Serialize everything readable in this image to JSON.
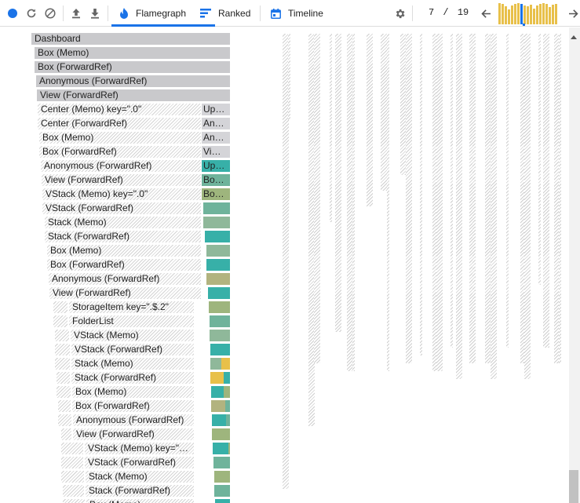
{
  "toolbar": {
    "tabs": [
      {
        "label": "Flamegraph",
        "active": true
      },
      {
        "label": "Ranked",
        "active": false
      },
      {
        "label": "Timeline",
        "active": false
      }
    ],
    "commit_index": "7",
    "commit_sep": "/",
    "commit_total": "19",
    "accent_color": "#1a73e8",
    "commit_bar_color": "#e8c04a",
    "commit_heights": [
      1.0,
      0.95,
      0.85,
      0.72,
      0.88,
      0.95,
      1.0,
      0.97,
      0.9,
      0.85,
      0.92,
      0.75,
      0.9,
      0.95,
      1.0,
      0.97,
      0.82,
      0.93,
      0.95
    ],
    "selected_commit": 7
  },
  "flame": {
    "left_tree": [
      {
        "label": "Dashboard",
        "style": "gray"
      },
      {
        "label": "Box (Memo)",
        "style": "gray"
      },
      {
        "label": "Box (ForwardRef)",
        "style": "gray"
      },
      {
        "label": "Anonymous (ForwardRef)",
        "style": "gray"
      },
      {
        "label": "View (ForwardRef)",
        "style": "gray"
      },
      {
        "label": "Center (Memo) key=\".0\"",
        "style": "hatch"
      },
      {
        "label": "Center (ForwardRef)",
        "style": "hatch"
      },
      {
        "label": "Box (Memo)",
        "style": "hatch"
      },
      {
        "label": "Box (ForwardRef)",
        "style": "hatch"
      },
      {
        "label": "Anonymous (ForwardRef)",
        "style": "hatch"
      },
      {
        "label": "View (ForwardRef)",
        "style": "hatch"
      },
      {
        "label": "VStack (Memo) key=\".0\"",
        "style": "hatch"
      },
      {
        "label": "VStack (ForwardRef)",
        "style": "hatch"
      },
      {
        "label": "Stack (Memo)",
        "style": "hatch"
      },
      {
        "label": "Stack (ForwardRef)",
        "style": "hatch"
      },
      {
        "label": "Box (Memo)",
        "style": "hatch"
      },
      {
        "label": "Box (ForwardRef)",
        "style": "hatch"
      },
      {
        "label": "Anonymous (ForwardRef)",
        "style": "hatch"
      },
      {
        "label": "View (ForwardRef)",
        "style": "hatch"
      },
      {
        "label": "StorageItem key=\".$.2\"",
        "style": "hatch"
      },
      {
        "label": "FolderList",
        "style": "hatch"
      },
      {
        "label": "VStack (Memo)",
        "style": "hatch"
      },
      {
        "label": "VStack (ForwardRef)",
        "style": "hatch"
      },
      {
        "label": "Stack (Memo)",
        "style": "hatch"
      },
      {
        "label": "Stack (ForwardRef)",
        "style": "hatch"
      },
      {
        "label": "Box (Memo)",
        "style": "hatch"
      },
      {
        "label": "Box (ForwardRef)",
        "style": "hatch"
      },
      {
        "label": "Anonymous (ForwardRef)",
        "style": "hatch"
      },
      {
        "label": "View (ForwardRef)",
        "style": "hatch"
      },
      {
        "label": "VStack (Memo) key=\"…",
        "style": "hatch"
      },
      {
        "label": "VStack (ForwardRef)",
        "style": "hatch"
      },
      {
        "label": "Stack (Memo)",
        "style": "hatch"
      },
      {
        "label": "Stack (ForwardRef)",
        "style": "hatch"
      },
      {
        "label": "Box (Memo)",
        "style": "hatch"
      }
    ],
    "right_labels": [
      "Up…",
      "An…",
      "An…",
      "Vi…",
      "Up…",
      "Bo…",
      "Bo…"
    ],
    "right_colors": [
      "#d4d4d8",
      "#d4d4d8",
      "#d4d4d8",
      "#d4d4d8",
      "#37b0a8",
      "#6fb39b",
      "#9eb57d",
      "#6fb39b",
      "#8fb89a",
      "#37b0a8",
      "#8fb89a",
      "#37b0a8",
      "#b2b37f",
      "#37b0a8",
      "#9eb57d",
      "#6fb39b",
      "#8fb89a",
      "#37b0a8",
      "#8fb89a",
      "#e8c04a",
      "#37b0a8",
      "#b2b37f",
      "#37b0a8",
      "#9eb57d",
      "#37b0a8",
      "#6fb39b",
      "#9eb57d",
      "#6fb39b",
      "#37b0a8",
      "#e8c04a"
    ]
  }
}
